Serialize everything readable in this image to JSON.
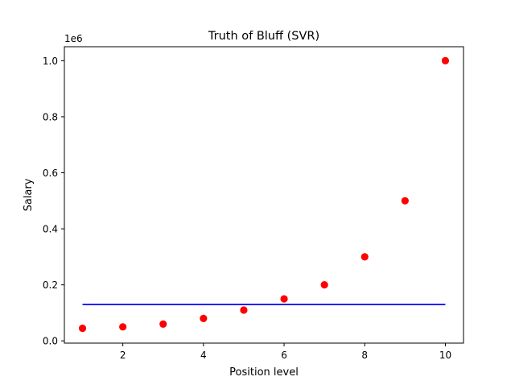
{
  "chart_data": {
    "type": "scatter",
    "title": "Truth of Bluff (SVR)",
    "xlabel": "Position level",
    "ylabel": "Salary",
    "y_offset_text": "1e6",
    "xlim": [
      0.55,
      10.45
    ],
    "ylim": [
      -0.008,
      1.05
    ],
    "x_ticks": [
      2,
      4,
      6,
      8,
      10
    ],
    "x_tick_labels": [
      "2",
      "4",
      "6",
      "8",
      "10"
    ],
    "y_ticks": [
      0.0,
      0.2,
      0.4,
      0.6,
      0.8,
      1.0
    ],
    "y_tick_labels": [
      "0.0",
      "0.2",
      "0.4",
      "0.6",
      "0.8",
      "1.0"
    ],
    "grid": false,
    "series": [
      {
        "kind": "scatter",
        "color": "#ff0000",
        "x": [
          1,
          2,
          3,
          4,
          5,
          6,
          7,
          8,
          9,
          10
        ],
        "y": [
          0.045,
          0.05,
          0.06,
          0.08,
          0.11,
          0.15,
          0.2,
          0.3,
          0.5,
          1.0
        ]
      },
      {
        "kind": "line",
        "color": "#0000ff",
        "x": [
          1,
          10
        ],
        "y": [
          0.13,
          0.13
        ]
      }
    ]
  }
}
